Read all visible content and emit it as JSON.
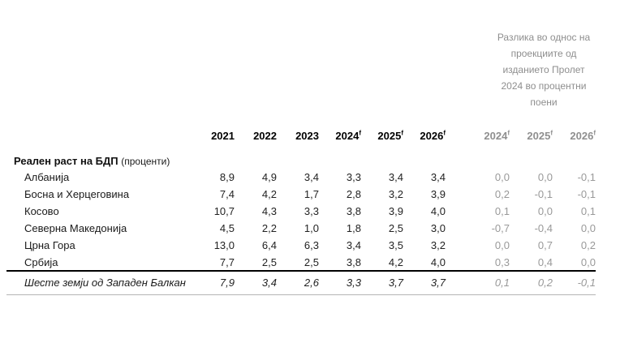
{
  "note": {
    "full_text": "Разлика во однос на проекциите од изданието Пролет 2024 во процентни поени",
    "lines": [
      "Разлика во однос на",
      "проекциите од",
      "изданието Пролет",
      "2024 во процентни",
      "поени"
    ]
  },
  "table": {
    "section_title": "Реален раст на БДП",
    "section_unit": "(проценти)",
    "main_years": [
      {
        "label": "2021",
        "sup": ""
      },
      {
        "label": "2022",
        "sup": ""
      },
      {
        "label": "2023",
        "sup": ""
      },
      {
        "label": "2024",
        "sup": "f"
      },
      {
        "label": "2025",
        "sup": "f"
      },
      {
        "label": "2026",
        "sup": "f"
      }
    ],
    "diff_years": [
      {
        "label": "2024",
        "sup": "f"
      },
      {
        "label": "2025",
        "sup": "f"
      },
      {
        "label": "2026",
        "sup": "f"
      }
    ],
    "rows": [
      {
        "label": "Албанија",
        "values": [
          "8,9",
          "4,9",
          "3,4",
          "3,3",
          "3,4",
          "3,4"
        ],
        "diffs": [
          "0,0",
          "0,0",
          "-0,1"
        ]
      },
      {
        "label": "Босна и Херцеговина",
        "values": [
          "7,4",
          "4,2",
          "1,7",
          "2,8",
          "3,2",
          "3,9"
        ],
        "diffs": [
          "0,2",
          "-0,1",
          "-0,1"
        ]
      },
      {
        "label": "Косово",
        "values": [
          "10,7",
          "4,3",
          "3,3",
          "3,8",
          "3,9",
          "4,0"
        ],
        "diffs": [
          "0,1",
          "0,0",
          "0,1"
        ]
      },
      {
        "label": "Северна Македонија",
        "values": [
          "4,5",
          "2,2",
          "1,0",
          "1,8",
          "2,5",
          "3,0"
        ],
        "diffs": [
          "-0,7",
          "-0,4",
          "0,0"
        ]
      },
      {
        "label": "Црна Гора",
        "values": [
          "13,0",
          "6,4",
          "6,3",
          "3,4",
          "3,5",
          "3,2"
        ],
        "diffs": [
          "0,0",
          "0,7",
          "0,2"
        ]
      },
      {
        "label": "Србија",
        "values": [
          "7,7",
          "2,5",
          "2,5",
          "3,8",
          "4,2",
          "4,0"
        ],
        "diffs": [
          "0,3",
          "0,4",
          "0,0"
        ]
      }
    ],
    "total": {
      "label": "Шесте земји од Западен Балкан",
      "values": [
        "7,9",
        "3,4",
        "2,6",
        "3,3",
        "3,7",
        "3,7"
      ],
      "diffs": [
        "0,1",
        "0,2",
        "-0,1"
      ]
    }
  },
  "colors": {
    "text": "#1a1a1a",
    "muted_gray": "#8f8f8f",
    "rule_dark": "#000000",
    "rule_light": "#b5b5b5",
    "background": "#ffffff"
  }
}
